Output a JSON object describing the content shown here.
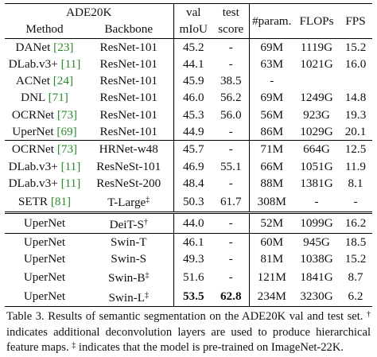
{
  "header": {
    "dataset": "ADE20K",
    "method": "Method",
    "backbone": "Backbone",
    "val_top": "val",
    "val_bottom": "mIoU",
    "test_top": "test",
    "test_bottom": "score",
    "params": "#param.",
    "flops": "FLOPs",
    "fps": "FPS"
  },
  "rows": [
    {
      "method": "DANet",
      "cite": "[23]",
      "backbone": "ResNet-101",
      "sup": "",
      "val": "45.2",
      "test": "-",
      "params": "69M",
      "flops": "1119G",
      "fps": "15.2"
    },
    {
      "method": "DLab.v3+",
      "cite": "[11]",
      "backbone": "ResNet-101",
      "sup": "",
      "val": "44.1",
      "test": "-",
      "params": "63M",
      "flops": "1021G",
      "fps": "16.0"
    },
    {
      "method": "ACNet",
      "cite": "[24]",
      "backbone": "ResNet-101",
      "sup": "",
      "val": "45.9",
      "test": "38.5",
      "params": "-",
      "flops": "",
      "fps": ""
    },
    {
      "method": "DNL",
      "cite": "[71]",
      "backbone": "ResNet-101",
      "sup": "",
      "val": "46.0",
      "test": "56.2",
      "params": "69M",
      "flops": "1249G",
      "fps": "14.8"
    },
    {
      "method": "OCRNet",
      "cite": "[73]",
      "backbone": "ResNet-101",
      "sup": "",
      "val": "45.3",
      "test": "56.0",
      "params": "56M",
      "flops": "923G",
      "fps": "19.3"
    },
    {
      "method": "UperNet",
      "cite": "[69]",
      "backbone": "ResNet-101",
      "sup": "",
      "val": "44.9",
      "test": "-",
      "params": "86M",
      "flops": "1029G",
      "fps": "20.1"
    },
    {
      "method": "OCRNet",
      "cite": "[73]",
      "backbone": "HRNet-w48",
      "sup": "",
      "val": "45.7",
      "test": "-",
      "params": "71M",
      "flops": "664G",
      "fps": "12.5"
    },
    {
      "method": "DLab.v3+",
      "cite": "[11]",
      "backbone": "ResNeSt-101",
      "sup": "",
      "val": "46.9",
      "test": "55.1",
      "params": "66M",
      "flops": "1051G",
      "fps": "11.9"
    },
    {
      "method": "DLab.v3+",
      "cite": "[11]",
      "backbone": "ResNeSt-200",
      "sup": "",
      "val": "48.4",
      "test": "-",
      "params": "88M",
      "flops": "1381G",
      "fps": "8.1"
    },
    {
      "method": "SETR",
      "cite": "[81]",
      "backbone": "T-Large",
      "sup": "‡",
      "val": "50.3",
      "test": "61.7",
      "params": "308M",
      "flops": "-",
      "fps": "-"
    },
    {
      "method": "UperNet",
      "cite": "",
      "backbone": "DeiT-S",
      "sup": "†",
      "val": "44.0",
      "test": "-",
      "params": "52M",
      "flops": "1099G",
      "fps": "16.2"
    },
    {
      "method": "UperNet",
      "cite": "",
      "backbone": "Swin-T",
      "sup": "",
      "val": "46.1",
      "test": "-",
      "params": "60M",
      "flops": "945G",
      "fps": "18.5"
    },
    {
      "method": "UperNet",
      "cite": "",
      "backbone": "Swin-S",
      "sup": "",
      "val": "49.3",
      "test": "-",
      "params": "81M",
      "flops": "1038G",
      "fps": "15.2"
    },
    {
      "method": "UperNet",
      "cite": "",
      "backbone": "Swin-B",
      "sup": "‡",
      "val": "51.6",
      "test": "-",
      "params": "121M",
      "flops": "1841G",
      "fps": "8.7"
    },
    {
      "method": "UperNet",
      "cite": "",
      "backbone": "Swin-L",
      "sup": "‡",
      "val": "53.5",
      "test": "62.8",
      "params": "234M",
      "flops": "3230G",
      "fps": "6.2"
    }
  ],
  "caption": {
    "part1": "Table 3. Results of semantic segmentation on the ADE20K val and test set.",
    "dagger": "†",
    "part2": "indicates additional deconvolution layers are used to produce hierarchical feature maps.",
    "ddagger": "‡",
    "part3": "indicates that the model is pre-trained on ImageNet-22K."
  }
}
